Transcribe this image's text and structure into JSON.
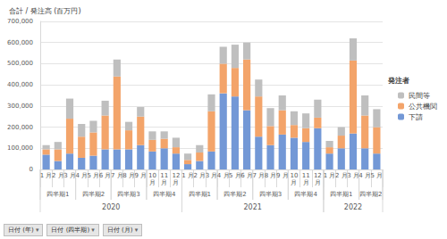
{
  "chart_data": {
    "type": "bar",
    "title": "合計 / 発注高 (百万円)",
    "stacked": true,
    "grid": true,
    "legend": "right",
    "legend_title": "発注者",
    "categories": [
      "1 月",
      "2 月",
      "3 月",
      "4 月",
      "5 月",
      "6 月",
      "7 月",
      "8 月",
      "9 月",
      "10 月",
      "11 月",
      "12 月",
      "1 月",
      "2 月",
      "3 月",
      "4 月",
      "5 月",
      "6 月",
      "7 月",
      "8 月",
      "9 月",
      "10 月",
      "11 月",
      "12 月",
      "1 月",
      "2 月",
      "3 月",
      "4 月",
      "5 月"
    ],
    "quarters": [
      "四半期1",
      "四半期1",
      "四半期1",
      "四半期2",
      "四半期2",
      "四半期2",
      "四半期3",
      "四半期3",
      "四半期3",
      "四半期4",
      "四半期4",
      "四半期4",
      "四半期1",
      "四半期1",
      "四半期1",
      "四半期2",
      "四半期2",
      "四半期2",
      "四半期3",
      "四半期3",
      "四半期3",
      "四半期4",
      "四半期4",
      "四半期4",
      "四半期1",
      "四半期1",
      "四半期1",
      "四半期2",
      "四半期2"
    ],
    "years": [
      "2020",
      "2020",
      "2020",
      "2020",
      "2020",
      "2020",
      "2020",
      "2020",
      "2020",
      "2020",
      "2020",
      "2020",
      "2021",
      "2021",
      "2021",
      "2021",
      "2021",
      "2021",
      "2021",
      "2021",
      "2021",
      "2021",
      "2021",
      "2021",
      "2022",
      "2022",
      "2022",
      "2022",
      "2022"
    ],
    "series": [
      {
        "name": "下請",
        "color": "#7398d6",
        "values": [
          70000,
          40000,
          75000,
          55000,
          65000,
          95000,
          95000,
          95000,
          115000,
          85000,
          100000,
          75000,
          25000,
          40000,
          85000,
          360000,
          345000,
          280000,
          155000,
          115000,
          165000,
          150000,
          130000,
          195000,
          75000,
          100000,
          170000,
          100000,
          75000
        ]
      },
      {
        "name": "公共機関",
        "color": "#f3a46a",
        "values": [
          25000,
          55000,
          165000,
          100000,
          110000,
          160000,
          345000,
          90000,
          135000,
          55000,
          45000,
          30000,
          20000,
          40000,
          190000,
          140000,
          135000,
          240000,
          190000,
          90000,
          115000,
          60000,
          65000,
          50000,
          30000,
          60000,
          345000,
          155000,
          125000
        ]
      },
      {
        "name": "民間等",
        "color": "#bfbfbf",
        "values": [
          20000,
          35000,
          95000,
          60000,
          55000,
          70000,
          80000,
          40000,
          45000,
          40000,
          35000,
          45000,
          30000,
          35000,
          80000,
          80000,
          110000,
          80000,
          80000,
          85000,
          70000,
          65000,
          70000,
          85000,
          30000,
          40000,
          105000,
          95000,
          85000
        ]
      }
    ],
    "ylim": [
      0,
      700000
    ],
    "yticks": [
      0,
      {
        "value": 100000,
        "label": "100,000"
      },
      {
        "value": 200000,
        "label": "200,000"
      },
      {
        "value": 300000,
        "label": "300,000"
      },
      {
        "value": 400000,
        "label": "400,000"
      },
      {
        "value": 500000,
        "label": "500,000"
      },
      {
        "value": 600000,
        "label": "600,000"
      },
      {
        "value": 700000,
        "label": "700,000"
      }
    ],
    "filter_buttons": [
      "日付 (年)",
      "日付 (四半期)",
      "日付 (月)"
    ]
  }
}
